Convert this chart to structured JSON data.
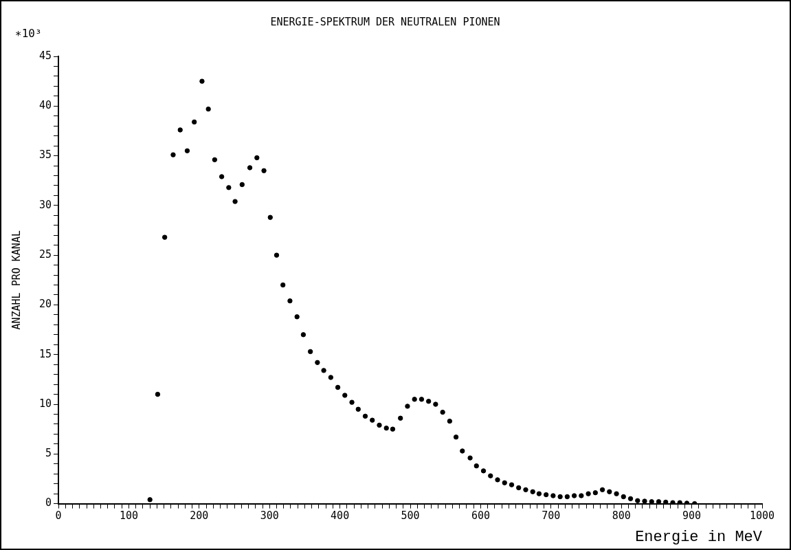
{
  "chart_data": {
    "type": "scatter",
    "title": "ENERGIE-SPEKTRUM DER NEUTRALEN PIONEN",
    "xlabel": "Energie in MeV",
    "ylabel": "ANZAHL PRO KANAL",
    "annotations": [
      "∗10³"
    ],
    "marker": "circle",
    "grid": false,
    "legend": false,
    "x": [
      130,
      141,
      151,
      163,
      173,
      183,
      193,
      204,
      213,
      222,
      232,
      242,
      251,
      261,
      272,
      282,
      292,
      301,
      310,
      319,
      329,
      339,
      348,
      358,
      368,
      377,
      387,
      397,
      407,
      417,
      426,
      436,
      446,
      456,
      466,
      475,
      486,
      496,
      506,
      516,
      526,
      536,
      546,
      556,
      565,
      574,
      585,
      594,
      604,
      614,
      624,
      634,
      644,
      654,
      664,
      674,
      683,
      693,
      703,
      713,
      723,
      733,
      743,
      753,
      763,
      773,
      783,
      793,
      803,
      813,
      823,
      833,
      843,
      853,
      863,
      873,
      883,
      893,
      904
    ],
    "values": [
      0.4,
      11,
      26.8,
      35.1,
      37.6,
      35.5,
      38.4,
      42.5,
      39.7,
      34.6,
      32.9,
      31.8,
      30.4,
      32.1,
      33.8,
      34.8,
      33.5,
      28.8,
      25,
      22,
      20.4,
      18.8,
      17,
      15.3,
      14.2,
      13.4,
      12.7,
      11.7,
      10.9,
      10.2,
      9.5,
      8.8,
      8.4,
      7.9,
      7.6,
      7.5,
      8.6,
      9.8,
      10.5,
      10.5,
      10.3,
      10,
      9.2,
      8.3,
      6.7,
      5.3,
      4.6,
      3.8,
      3.3,
      2.8,
      2.4,
      2.1,
      1.9,
      1.6,
      1.4,
      1.2,
      1,
      0.9,
      0.8,
      0.7,
      0.7,
      0.8,
      0.8,
      1,
      1.1,
      1.4,
      1.2,
      1,
      0.7,
      0.5,
      0.3,
      0.25,
      0.2,
      0.2,
      0.15,
      0.1,
      0.1,
      0.05,
      0
    ],
    "color": "#000000",
    "xlim": [
      0,
      1000
    ],
    "xticks": [
      0,
      {
        "value": 10,
        "label": null
      },
      {
        "value": 20,
        "label": null
      },
      {
        "value": 30,
        "label": null
      },
      {
        "value": 40,
        "label": null
      },
      {
        "value": 50,
        "label": null
      },
      {
        "value": 60,
        "label": null
      },
      {
        "value": 70,
        "label": null
      },
      {
        "value": 80,
        "label": null
      },
      {
        "value": 90,
        "label": null
      },
      100,
      {
        "value": 110,
        "label": null
      },
      {
        "value": 120,
        "label": null
      },
      {
        "value": 130,
        "label": null
      },
      {
        "value": 140,
        "label": null
      },
      {
        "value": 150,
        "label": null
      },
      {
        "value": 160,
        "label": null
      },
      {
        "value": 170,
        "label": null
      },
      {
        "value": 180,
        "label": null
      },
      {
        "value": 190,
        "label": null
      },
      200,
      {
        "value": 210,
        "label": null
      },
      {
        "value": 220,
        "label": null
      },
      {
        "value": 230,
        "label": null
      },
      {
        "value": 240,
        "label": null
      },
      {
        "value": 250,
        "label": null
      },
      {
        "value": 260,
        "label": null
      },
      {
        "value": 270,
        "label": null
      },
      {
        "value": 280,
        "label": null
      },
      {
        "value": 290,
        "label": null
      },
      300,
      {
        "value": 310,
        "label": null
      },
      {
        "value": 320,
        "label": null
      },
      {
        "value": 330,
        "label": null
      },
      {
        "value": 340,
        "label": null
      },
      {
        "value": 350,
        "label": null
      },
      {
        "value": 360,
        "label": null
      },
      {
        "value": 370,
        "label": null
      },
      {
        "value": 380,
        "label": null
      },
      {
        "value": 390,
        "label": null
      },
      400,
      {
        "value": 410,
        "label": null
      },
      {
        "value": 420,
        "label": null
      },
      {
        "value": 430,
        "label": null
      },
      {
        "value": 440,
        "label": null
      },
      {
        "value": 450,
        "label": null
      },
      {
        "value": 460,
        "label": null
      },
      {
        "value": 470,
        "label": null
      },
      {
        "value": 480,
        "label": null
      },
      {
        "value": 490,
        "label": null
      },
      500,
      {
        "value": 510,
        "label": null
      },
      {
        "value": 520,
        "label": null
      },
      {
        "value": 530,
        "label": null
      },
      {
        "value": 540,
        "label": null
      },
      {
        "value": 550,
        "label": null
      },
      {
        "value": 560,
        "label": null
      },
      {
        "value": 570,
        "label": null
      },
      {
        "value": 580,
        "label": null
      },
      {
        "value": 590,
        "label": null
      },
      600,
      {
        "value": 610,
        "label": null
      },
      {
        "value": 620,
        "label": null
      },
      {
        "value": 630,
        "label": null
      },
      {
        "value": 640,
        "label": null
      },
      {
        "value": 650,
        "label": null
      },
      {
        "value": 660,
        "label": null
      },
      {
        "value": 670,
        "label": null
      },
      {
        "value": 680,
        "label": null
      },
      {
        "value": 690,
        "label": null
      },
      700,
      {
        "value": 710,
        "label": null
      },
      {
        "value": 720,
        "label": null
      },
      {
        "value": 730,
        "label": null
      },
      {
        "value": 740,
        "label": null
      },
      {
        "value": 750,
        "label": null
      },
      {
        "value": 760,
        "label": null
      },
      {
        "value": 770,
        "label": null
      },
      {
        "value": 780,
        "label": null
      },
      {
        "value": 790,
        "label": null
      },
      800,
      {
        "value": 810,
        "label": null
      },
      {
        "value": 820,
        "label": null
      },
      {
        "value": 830,
        "label": null
      },
      {
        "value": 840,
        "label": null
      },
      {
        "value": 850,
        "label": null
      },
      {
        "value": 860,
        "label": null
      },
      {
        "value": 870,
        "label": null
      },
      {
        "value": 880,
        "label": null
      },
      {
        "value": 890,
        "label": null
      },
      900,
      {
        "value": 910,
        "label": null
      },
      {
        "value": 920,
        "label": null
      },
      {
        "value": 930,
        "label": null
      },
      {
        "value": 940,
        "label": null
      },
      {
        "value": 950,
        "label": null
      },
      {
        "value": 960,
        "label": null
      },
      {
        "value": 970,
        "label": null
      },
      {
        "value": 980,
        "label": null
      },
      {
        "value": 990,
        "label": null
      },
      1000
    ],
    "ylim": [
      0,
      45
    ],
    "yticks": [
      0,
      {
        "value": 1,
        "label": null
      },
      {
        "value": 2,
        "label": null
      },
      {
        "value": 3,
        "label": null
      },
      {
        "value": 4,
        "label": null
      },
      5,
      {
        "value": 6,
        "label": null
      },
      {
        "value": 7,
        "label": null
      },
      {
        "value": 8,
        "label": null
      },
      {
        "value": 9,
        "label": null
      },
      10,
      {
        "value": 11,
        "label": null
      },
      {
        "value": 12,
        "label": null
      },
      {
        "value": 13,
        "label": null
      },
      {
        "value": 14,
        "label": null
      },
      15,
      {
        "value": 16,
        "label": null
      },
      {
        "value": 17,
        "label": null
      },
      {
        "value": 18,
        "label": null
      },
      {
        "value": 19,
        "label": null
      },
      20,
      {
        "value": 21,
        "label": null
      },
      {
        "value": 22,
        "label": null
      },
      {
        "value": 23,
        "label": null
      },
      {
        "value": 24,
        "label": null
      },
      25,
      {
        "value": 26,
        "label": null
      },
      {
        "value": 27,
        "label": null
      },
      {
        "value": 28,
        "label": null
      },
      {
        "value": 29,
        "label": null
      },
      30,
      {
        "value": 31,
        "label": null
      },
      {
        "value": 32,
        "label": null
      },
      {
        "value": 33,
        "label": null
      },
      {
        "value": 34,
        "label": null
      },
      35,
      {
        "value": 36,
        "label": null
      },
      {
        "value": 37,
        "label": null
      },
      {
        "value": 38,
        "label": null
      },
      {
        "value": 39,
        "label": null
      },
      40,
      {
        "value": 41,
        "label": null
      },
      {
        "value": 42,
        "label": null
      },
      {
        "value": 43,
        "label": null
      },
      {
        "value": 44,
        "label": null
      },
      45
    ]
  }
}
